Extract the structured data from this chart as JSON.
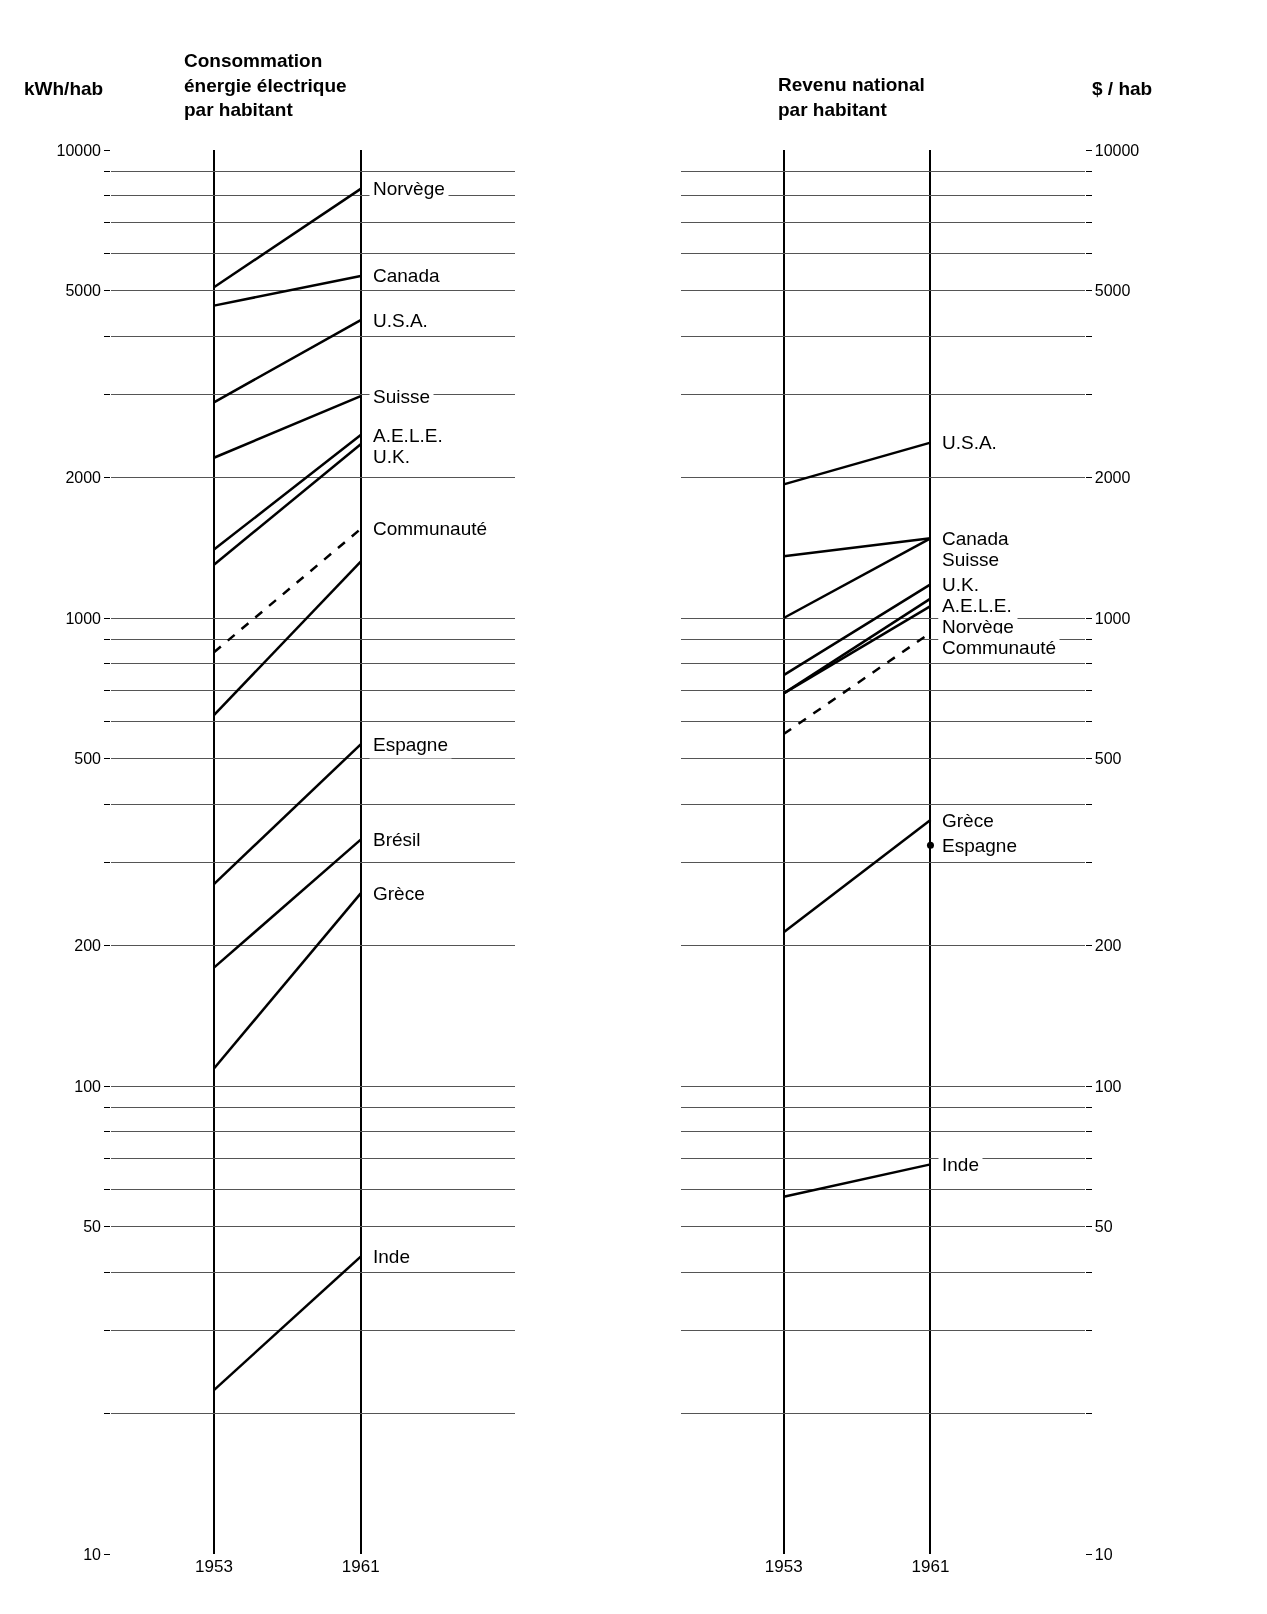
{
  "chart_data": [
    {
      "type": "line",
      "title": "Consommation\nénergie électrique\npar habitant",
      "ylabel": "kWh/hab",
      "categories": [
        "1953",
        "1961"
      ],
      "log": true,
      "grid": true,
      "marker": "none",
      "ylim": [
        10,
        10000
      ],
      "yticks": [
        10,
        {
          "value": 20,
          "label": null
        },
        {
          "value": 30,
          "label": null
        },
        {
          "value": 40,
          "label": null
        },
        50,
        {
          "value": 60,
          "label": null
        },
        {
          "value": 70,
          "label": null
        },
        {
          "value": 80,
          "label": null
        },
        {
          "value": 90,
          "label": null
        },
        100,
        200,
        {
          "value": 300,
          "label": null
        },
        {
          "value": 400,
          "label": null
        },
        500,
        {
          "value": 600,
          "label": null
        },
        {
          "value": 700,
          "label": null
        },
        {
          "value": 800,
          "label": null
        },
        {
          "value": 900,
          "label": null
        },
        1000,
        2000,
        {
          "value": 3000,
          "label": null
        },
        {
          "value": 4000,
          "label": null
        },
        5000,
        {
          "value": 6000,
          "label": null
        },
        {
          "value": 7000,
          "label": null
        },
        {
          "value": 8000,
          "label": null
        },
        {
          "value": 9000,
          "label": null
        },
        10000
      ],
      "series": [
        {
          "name": "Norvège",
          "color": "#000000",
          "values": [
            5090,
            8260
          ]
        },
        {
          "name": "Canada",
          "color": "#000000",
          "values": [
            4650,
            5380
          ]
        },
        {
          "name": "U.S.A.",
          "color": "#000000",
          "values": [
            2890,
            4330
          ]
        },
        {
          "name": "Suisse",
          "color": "#000000",
          "values": [
            2200,
            2980
          ]
        },
        {
          "name": "A.E.L.E.",
          "color": "#000000",
          "values": [
            1400,
            2460
          ]
        },
        {
          "name": "U.K.",
          "color": "#000000",
          "values": [
            1300,
            2350
          ]
        },
        {
          "name": "Communauté",
          "color": "#000000",
          "values": [
            845,
            1550
          ],
          "line_style": "dashed"
        },
        {
          "color": "#000000",
          "values": [
            620,
            1320
          ]
        },
        {
          "name": "Espagne",
          "color": "#000000",
          "values": [
            270,
            537
          ]
        },
        {
          "name": "Brésil",
          "color": "#000000",
          "values": [
            179,
            336
          ]
        },
        {
          "name": "Grèce",
          "color": "#000000",
          "values": [
            109,
            258
          ]
        },
        {
          "name": "Inde",
          "color": "#000000",
          "values": [
            22.4,
            43.2
          ]
        }
      ]
    },
    {
      "type": "line",
      "title": "Revenu national\npar habitant",
      "ylabel": "$ / hab",
      "categories": [
        "1953",
        "1961"
      ],
      "log": true,
      "grid": true,
      "marker": "none",
      "ylim": [
        10,
        10000
      ],
      "yticks": [
        10,
        {
          "value": 20,
          "label": null
        },
        {
          "value": 30,
          "label": null
        },
        {
          "value": 40,
          "label": null
        },
        50,
        {
          "value": 60,
          "label": null
        },
        {
          "value": 70,
          "label": null
        },
        {
          "value": 80,
          "label": null
        },
        {
          "value": 90,
          "label": null
        },
        100,
        200,
        {
          "value": 300,
          "label": null
        },
        {
          "value": 400,
          "label": null
        },
        500,
        {
          "value": 600,
          "label": null
        },
        {
          "value": 700,
          "label": null
        },
        {
          "value": 800,
          "label": null
        },
        {
          "value": 900,
          "label": null
        },
        1000,
        2000,
        {
          "value": 3000,
          "label": null
        },
        {
          "value": 4000,
          "label": null
        },
        5000,
        {
          "value": 6000,
          "label": null
        },
        {
          "value": 7000,
          "label": null
        },
        {
          "value": 8000,
          "label": null
        },
        {
          "value": 9000,
          "label": null
        },
        10000
      ],
      "series": [
        {
          "name": "U.S.A.",
          "color": "#000000",
          "values": [
            1930,
            2370
          ]
        },
        {
          "name": "Canada",
          "color": "#000000",
          "values": [
            1355,
            1480
          ]
        },
        {
          "name": "Suisse",
          "color": "#000000",
          "values": [
            1000,
            1480
          ]
        },
        {
          "name": "U.K.",
          "color": "#000000",
          "values": [
            755,
            1180
          ]
        },
        {
          "name": "A.E.L.E.",
          "color": "#000000",
          "values": [
            690,
            1100
          ]
        },
        {
          "name": "Norvège",
          "color": "#000000",
          "values": [
            690,
            1060
          ]
        },
        {
          "name": "Communauté",
          "color": "#000000",
          "values": [
            565,
            930
          ],
          "line_style": "dashed"
        },
        {
          "name": "Grèce",
          "color": "#000000",
          "values": [
            213,
            370
          ]
        },
        {
          "name": "Espagne",
          "color": "#000000",
          "values": [
            null,
            327
          ],
          "type": "scatter",
          "marker": "circle"
        },
        {
          "name": "Inde",
          "color": "#000000",
          "values": [
            58,
            68
          ]
        }
      ]
    }
  ]
}
